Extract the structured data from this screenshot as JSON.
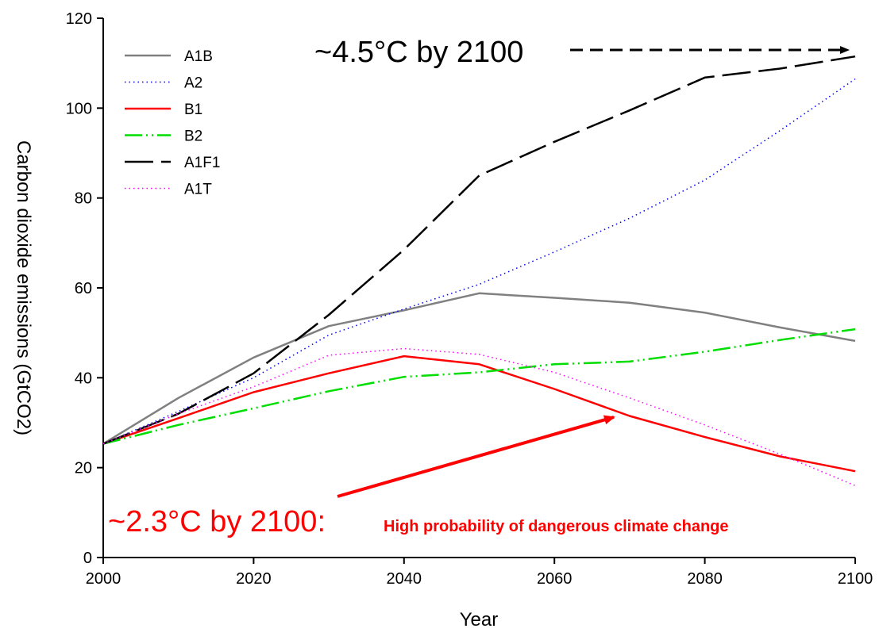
{
  "chart_data": {
    "type": "line",
    "xlabel": "Year",
    "ylabel": "Carbon dioxide emissions (GtCO2)",
    "xlim": [
      2000,
      2100
    ],
    "ylim": [
      0,
      120
    ],
    "xticks": [
      2000,
      2020,
      2040,
      2060,
      2080,
      2100
    ],
    "yticks": [
      0,
      20,
      40,
      60,
      80,
      100,
      120
    ],
    "grid": false,
    "legend_position": "top-left",
    "series": [
      {
        "name": "A1B",
        "color": "#808080",
        "dash": "solid",
        "x": [
          2000,
          2010,
          2020,
          2030,
          2040,
          2050,
          2060,
          2070,
          2080,
          2090,
          2100
        ],
        "y": [
          25.3,
          35.5,
          44.5,
          51.5,
          55,
          58.8,
          57.8,
          56.7,
          54.5,
          51.2,
          48.2
        ]
      },
      {
        "name": "A2",
        "color": "#0000ff",
        "dash": "dotted",
        "x": [
          2000,
          2010,
          2020,
          2030,
          2040,
          2050,
          2060,
          2070,
          2080,
          2090,
          2100
        ],
        "y": [
          25.3,
          32.5,
          40,
          49.5,
          55.3,
          60.8,
          68,
          75.5,
          84,
          95,
          106.5
        ]
      },
      {
        "name": "B1",
        "color": "#ff0000",
        "dash": "solid",
        "x": [
          2000,
          2010,
          2020,
          2030,
          2040,
          2050,
          2060,
          2070,
          2080,
          2090,
          2100
        ],
        "y": [
          25.3,
          31,
          36.8,
          41,
          44.8,
          43,
          37.5,
          31.5,
          26.8,
          22.5,
          19.2
        ]
      },
      {
        "name": "B2",
        "color": "#00dd00",
        "dash": "dashdotdot",
        "x": [
          2000,
          2010,
          2020,
          2030,
          2040,
          2050,
          2060,
          2070,
          2080,
          2090,
          2100
        ],
        "y": [
          25.3,
          29.5,
          33.2,
          37,
          40.2,
          41.2,
          43,
          43.6,
          45.8,
          48.4,
          50.8
        ]
      },
      {
        "name": "A1F1",
        "color": "#000000",
        "dash": "longdash",
        "x": [
          2000,
          2010,
          2020,
          2030,
          2040,
          2050,
          2060,
          2070,
          2080,
          2090,
          2100
        ],
        "y": [
          25.3,
          32,
          41,
          54,
          68.5,
          85,
          92.5,
          99.5,
          106.8,
          108.8,
          111.5
        ]
      },
      {
        "name": "A1T",
        "color": "#ff00ff",
        "dash": "dotted",
        "x": [
          2000,
          2010,
          2020,
          2030,
          2040,
          2050,
          2060,
          2070,
          2080,
          2090,
          2100
        ],
        "y": [
          25.3,
          32,
          38,
          45,
          46.5,
          45.2,
          41.2,
          35.5,
          29.5,
          23,
          16
        ]
      }
    ],
    "annotations": [
      {
        "id": "high",
        "text": "~4.5°C by 2100",
        "color": "#000000"
      },
      {
        "id": "low",
        "text": "~2.3°C by 2100:",
        "color": "#ff0000"
      },
      {
        "id": "low_note",
        "text": "High probability of dangerous climate change",
        "color": "#ff0000"
      }
    ]
  }
}
